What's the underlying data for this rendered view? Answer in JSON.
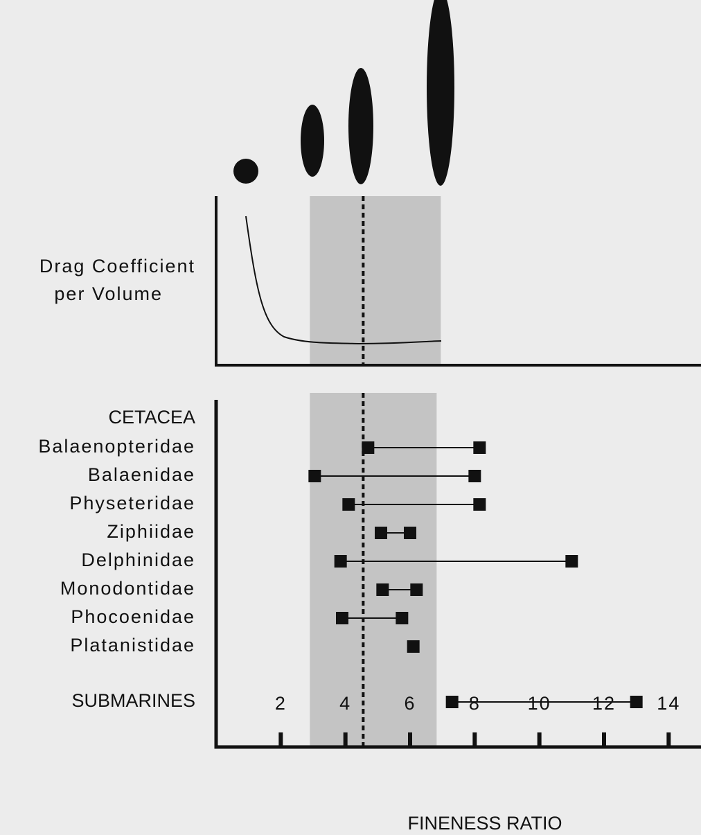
{
  "chart_data": {
    "type": "range",
    "ylabel_lines": [
      "Drag  Coefficient",
      "per Volume"
    ],
    "xlabel": "FINENESS RATIO",
    "group_label": "CETACEA",
    "categories": [
      "Balaenopteridae",
      "Balaenidae",
      "Physeteridae",
      "Ziphiidae",
      "Delphinidae",
      "Monodontidae",
      "Phocoenidae",
      "Platanistidae",
      "SUBMARINES"
    ],
    "min": [
      4.7,
      3.05,
      4.1,
      5.1,
      3.85,
      5.15,
      3.9,
      6.1,
      7.3
    ],
    "max": [
      8.15,
      8.0,
      8.15,
      6.0,
      11.0,
      6.2,
      5.75,
      null,
      13.0
    ],
    "color": "#111111",
    "shaded_range": [
      2.9,
      6.95
    ],
    "optimum": 4.55,
    "xlim": [
      0,
      15
    ],
    "xticks": [
      2,
      4,
      6,
      8,
      10,
      12,
      14
    ]
  }
}
